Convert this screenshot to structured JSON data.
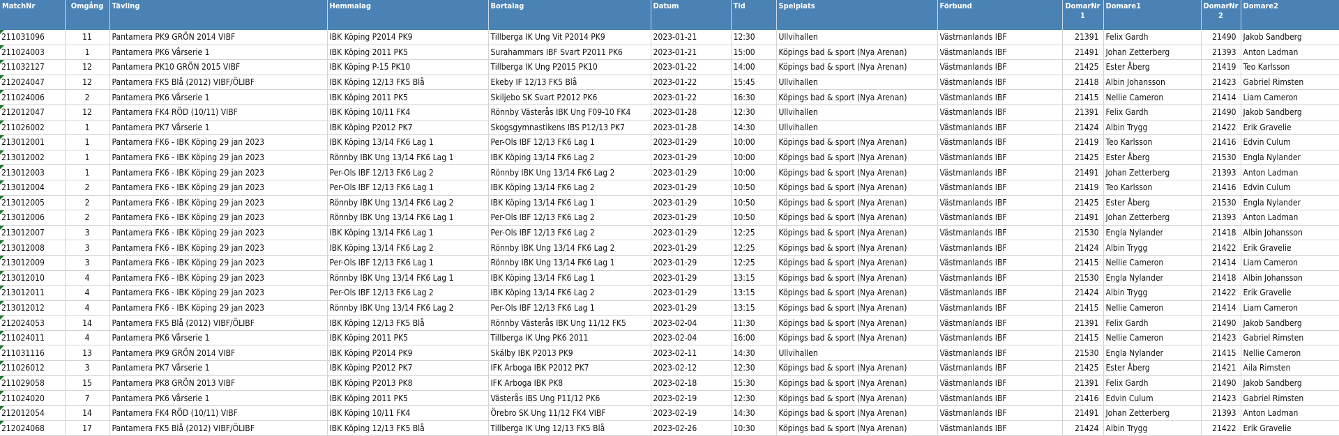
{
  "colors": {
    "header_bg": "#4a82b6",
    "grid": "#d4d4d4",
    "indicator": "#1a7a2a"
  },
  "columns": [
    "MatchNr",
    "Omgång",
    "Tävling",
    "Hemmalag",
    "Bortalag",
    "Datum",
    "Tid",
    "Spelplats",
    "Förbund",
    "DomarNr 1",
    "Domare1",
    "DomarNr 2",
    "Domare2"
  ],
  "rows": [
    [
      "211031096",
      "11",
      "Pantamera PK9 GRÖN 2014 VIBF",
      "IBK Köping P2014 PK9",
      "Tillberga IK Ung Vit P2014 PK9",
      "2023-01-21",
      "12:30",
      "Ullvihallen",
      "Västmanlands IBF",
      "21391",
      "Felix Gardh",
      "21490",
      "Jakob Sandberg"
    ],
    [
      "211024003",
      "1",
      "Pantamera PK6 Vårserie 1",
      "IBK Köping 2011 PK5",
      "Surahammars IBF Svart P2011 PK6",
      "2023-01-21",
      "15:00",
      "Köpings bad & sport (Nya Arenan)",
      "Västmanlands IBF",
      "21491",
      "Johan Zetterberg",
      "21393",
      "Anton Ladman"
    ],
    [
      "211032127",
      "12",
      "Pantamera PK10 GRÖN 2015 VIBF",
      "IBK Köping P-15 PK10",
      "Tillberga IK Ung P2015 PK10",
      "2023-01-22",
      "14:00",
      "Köpings bad & sport (Nya Arenan)",
      "Västmanlands IBF",
      "21425",
      "Ester Åberg",
      "21419",
      "Teo Karlsson"
    ],
    [
      "212024047",
      "12",
      "Pantamera FK5 Blå (2012) VIBF/ÖLIBF",
      "IBK Köping 12/13 FK5 Blå",
      "Ekeby IF 12/13 FK5 Blå",
      "2023-01-22",
      "15:45",
      "Ullvihallen",
      "Västmanlands IBF",
      "21418",
      "Albin Johansson",
      "21423",
      "Gabriel Rimsten"
    ],
    [
      "211024006",
      "2",
      "Pantamera PK6 Vårserie 1",
      "IBK Köping 2011 PK5",
      "Skiljebo SK Svart P2012 PK6",
      "2023-01-22",
      "16:30",
      "Köpings bad & sport (Nya Arenan)",
      "Västmanlands IBF",
      "21415",
      "Nellie Cameron",
      "21414",
      "Liam Cameron"
    ],
    [
      "212012047",
      "12",
      "Pantamera FK4 RÖD (10/11) VIBF",
      "IBK Köping 10/11 FK4",
      "Rönnby Västerås IBK Ung F09-10 FK4",
      "2023-01-28",
      "12:30",
      "Ullvihallen",
      "Västmanlands IBF",
      "21391",
      "Felix Gardh",
      "21490",
      "Jakob Sandberg"
    ],
    [
      "211026002",
      "1",
      "Pantamera PK7 Vårserie 1",
      "IBK Köping P2012 PK7",
      "Skogsgymnastikens IBS P12/13 PK7",
      "2023-01-28",
      "14:30",
      "Ullvihallen",
      "Västmanlands IBF",
      "21424",
      "Albin Trygg",
      "21422",
      "Erik Gravelie"
    ],
    [
      "213012001",
      "1",
      "Pantamera FK6 - IBK Köping 29 jan 2023",
      "IBK Köping 13/14 FK6 Lag 1",
      "Per-Ols IBF 12/13 FK6 Lag 1",
      "2023-01-29",
      "10:00",
      "Köpings bad & sport (Nya Arenan)",
      "Västmanlands IBF",
      "21419",
      "Teo Karlsson",
      "21416",
      "Edvin Culum"
    ],
    [
      "213012002",
      "1",
      "Pantamera FK6 - IBK Köping 29 jan 2023",
      "Rönnby IBK Ung 13/14 FK6 Lag 1",
      "IBK Köping 13/14 FK6 Lag 2",
      "2023-01-29",
      "10:00",
      "Köpings bad & sport (Nya Arenan)",
      "Västmanlands IBF",
      "21425",
      "Ester Åberg",
      "21530",
      "Engla Nylander"
    ],
    [
      "213012003",
      "1",
      "Pantamera FK6 - IBK Köping 29 jan 2023",
      "Per-Ols IBF 12/13 FK6 Lag 2",
      "Rönnby IBK Ung 13/14 FK6 Lag 2",
      "2023-01-29",
      "10:00",
      "Köpings bad & sport (Nya Arenan)",
      "Västmanlands IBF",
      "21491",
      "Johan Zetterberg",
      "21393",
      "Anton Ladman"
    ],
    [
      "213012004",
      "2",
      "Pantamera FK6 - IBK Köping 29 jan 2023",
      "Per-Ols IBF 12/13 FK6 Lag 1",
      "IBK Köping 13/14 FK6 Lag 2",
      "2023-01-29",
      "10:50",
      "Köpings bad & sport (Nya Arenan)",
      "Västmanlands IBF",
      "21419",
      "Teo Karlsson",
      "21416",
      "Edvin Culum"
    ],
    [
      "213012005",
      "2",
      "Pantamera FK6 - IBK Köping 29 jan 2023",
      "Rönnby IBK Ung 13/14 FK6 Lag 2",
      "IBK Köping 13/14 FK6 Lag 1",
      "2023-01-29",
      "10:50",
      "Köpings bad & sport (Nya Arenan)",
      "Västmanlands IBF",
      "21425",
      "Ester Åberg",
      "21530",
      "Engla Nylander"
    ],
    [
      "213012006",
      "2",
      "Pantamera FK6 - IBK Köping 29 jan 2023",
      "Rönnby IBK Ung 13/14 FK6 Lag 1",
      "Per-Ols IBF 12/13 FK6 Lag 2",
      "2023-01-29",
      "10:50",
      "Köpings bad & sport (Nya Arenan)",
      "Västmanlands IBF",
      "21491",
      "Johan Zetterberg",
      "21393",
      "Anton Ladman"
    ],
    [
      "213012007",
      "3",
      "Pantamera FK6 - IBK Köping 29 jan 2023",
      "IBK Köping 13/14 FK6 Lag 1",
      "Per-Ols IBF 12/13 FK6 Lag 2",
      "2023-01-29",
      "12:25",
      "Köpings bad & sport (Nya Arenan)",
      "Västmanlands IBF",
      "21530",
      "Engla Nylander",
      "21418",
      "Albin Johansson"
    ],
    [
      "213012008",
      "3",
      "Pantamera FK6 - IBK Köping 29 jan 2023",
      "IBK Köping 13/14 FK6 Lag 2",
      "Rönnby IBK Ung 13/14 FK6 Lag 2",
      "2023-01-29",
      "12:25",
      "Köpings bad & sport (Nya Arenan)",
      "Västmanlands IBF",
      "21424",
      "Albin Trygg",
      "21422",
      "Erik Gravelie"
    ],
    [
      "213012009",
      "3",
      "Pantamera FK6 - IBK Köping 29 jan 2023",
      "Per-Ols IBF 12/13 FK6 Lag 1",
      "Rönnby IBK Ung 13/14 FK6 Lag 1",
      "2023-01-29",
      "12:25",
      "Köpings bad & sport (Nya Arenan)",
      "Västmanlands IBF",
      "21415",
      "Nellie Cameron",
      "21414",
      "Liam Cameron"
    ],
    [
      "213012010",
      "4",
      "Pantamera FK6 - IBK Köping 29 jan 2023",
      "Rönnby IBK Ung 13/14 FK6 Lag 1",
      "IBK Köping 13/14 FK6 Lag 1",
      "2023-01-29",
      "13:15",
      "Köpings bad & sport (Nya Arenan)",
      "Västmanlands IBF",
      "21530",
      "Engla Nylander",
      "21418",
      "Albin Johansson"
    ],
    [
      "213012011",
      "4",
      "Pantamera FK6 - IBK Köping 29 jan 2023",
      "Per-Ols IBF 12/13 FK6 Lag 2",
      "IBK Köping 13/14 FK6 Lag 2",
      "2023-01-29",
      "13:15",
      "Köpings bad & sport (Nya Arenan)",
      "Västmanlands IBF",
      "21424",
      "Albin Trygg",
      "21422",
      "Erik Gravelie"
    ],
    [
      "213012012",
      "4",
      "Pantamera FK6 - IBK Köping 29 jan 2023",
      "Rönnby IBK Ung 13/14 FK6 Lag 2",
      "Per-Ols IBF 12/13 FK6 Lag 1",
      "2023-01-29",
      "13:15",
      "Köpings bad & sport (Nya Arenan)",
      "Västmanlands IBF",
      "21415",
      "Nellie Cameron",
      "21414",
      "Liam Cameron"
    ],
    [
      "212024053",
      "14",
      "Pantamera FK5 Blå (2012) VIBF/ÖLIBF",
      "IBK Köping 12/13 FK5 Blå",
      "Rönnby Västerås IBK Ung 11/12 FK5",
      "2023-02-04",
      "11:30",
      "Köpings bad & sport (Nya Arenan)",
      "Västmanlands IBF",
      "21391",
      "Felix Gardh",
      "21490",
      "Jakob Sandberg"
    ],
    [
      "211024011",
      "4",
      "Pantamera PK6 Vårserie 1",
      "IBK Köping 2011 PK5",
      "Tillberga IK Ung PK6 2011",
      "2023-02-04",
      "16:00",
      "Köpings bad & sport (Nya Arenan)",
      "Västmanlands IBF",
      "21415",
      "Nellie Cameron",
      "21423",
      "Gabriel Rimsten"
    ],
    [
      "211031116",
      "13",
      "Pantamera PK9 GRÖN 2014 VIBF",
      "IBK Köping P2014 PK9",
      "Skälby IBK P2013 PK9",
      "2023-02-11",
      "14:30",
      "Ullvihallen",
      "Västmanlands IBF",
      "21530",
      "Engla Nylander",
      "21415",
      "Nellie Cameron"
    ],
    [
      "211026012",
      "3",
      "Pantamera PK7 Vårserie 1",
      "IBK Köping P2012 PK7",
      "IFK Arboga IBK P2012 PK7",
      "2023-02-12",
      "12:30",
      "Köpings bad & sport (Nya Arenan)",
      "Västmanlands IBF",
      "21425",
      "Ester Åberg",
      "21421",
      "Aila Rimsten"
    ],
    [
      "211029058",
      "15",
      "Pantamera PK8 GRÖN 2013 VIBF",
      "IBK Köping P2013 PK8",
      "IFK Arboga IBK PK8",
      "2023-02-18",
      "15:30",
      "Köpings bad & sport (Nya Arenan)",
      "Västmanlands IBF",
      "21391",
      "Felix Gardh",
      "21490",
      "Jakob Sandberg"
    ],
    [
      "211024020",
      "7",
      "Pantamera PK6 Vårserie 1",
      "IBK Köping 2011 PK5",
      "Västerås IBS Ung P11/12 PK6",
      "2023-02-19",
      "12:30",
      "Köpings bad & sport (Nya Arenan)",
      "Västmanlands IBF",
      "21416",
      "Edvin Culum",
      "21423",
      "Gabriel Rimsten"
    ],
    [
      "212012054",
      "14",
      "Pantamera FK4 RÖD (10/11) VIBF",
      "IBK Köping 10/11 FK4",
      "Örebro SK Ung 11/12 FK4 VIBF",
      "2023-02-19",
      "14:30",
      "Köpings bad & sport (Nya Arenan)",
      "Västmanlands IBF",
      "21491",
      "Johan Zetterberg",
      "21393",
      "Anton Ladman"
    ],
    [
      "212024068",
      "17",
      "Pantamera FK5 Blå (2012) VIBF/ÖLIBF",
      "IBK Köping 12/13 FK5 Blå",
      "Tillberga IK Ung 12/13 FK5 Blå",
      "2023-02-26",
      "10:30",
      "Köpings bad & sport (Nya Arenan)",
      "Västmanlands IBF",
      "21424",
      "Albin Trygg",
      "21422",
      "Erik Gravelie"
    ]
  ]
}
